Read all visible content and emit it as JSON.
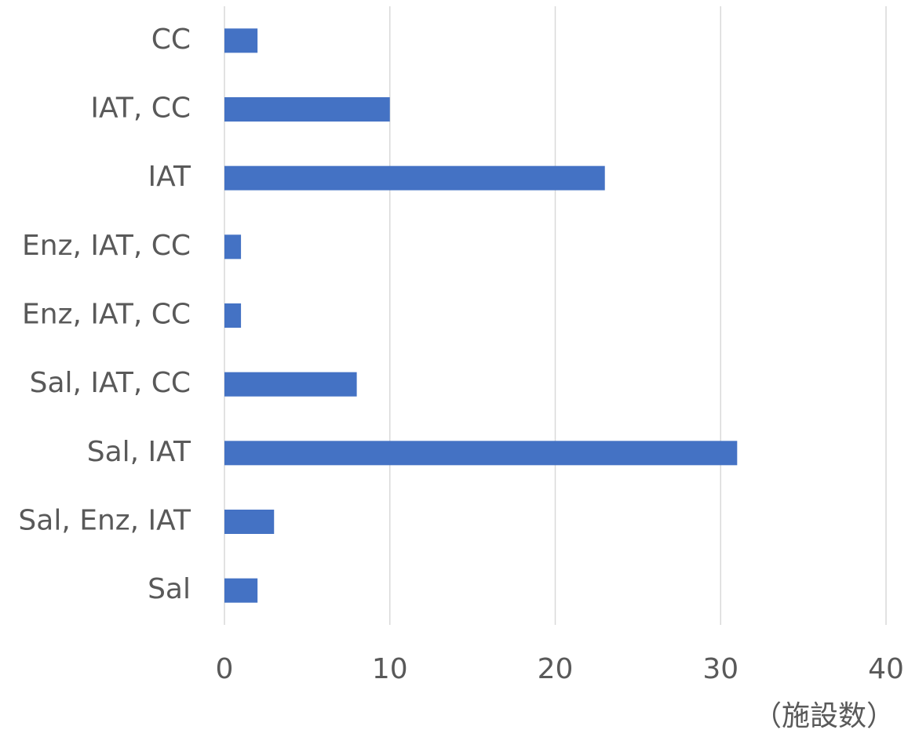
{
  "chart_data": {
    "type": "bar",
    "orientation": "horizontal",
    "categories": [
      "CC",
      "IAT, CC",
      "IAT",
      "Enz, IAT, CC",
      "Enz, IAT, CC",
      "Sal, IAT, CC",
      "Sal, IAT",
      "Sal, Enz, IAT",
      "Sal"
    ],
    "values": [
      2,
      10,
      23,
      1,
      1,
      8,
      31,
      3,
      2
    ],
    "color": "#4472c4",
    "xlim": [
      0,
      40
    ],
    "xticks": [
      0,
      10,
      20,
      30,
      40
    ],
    "x_label": "（施設数）",
    "grid": true
  }
}
